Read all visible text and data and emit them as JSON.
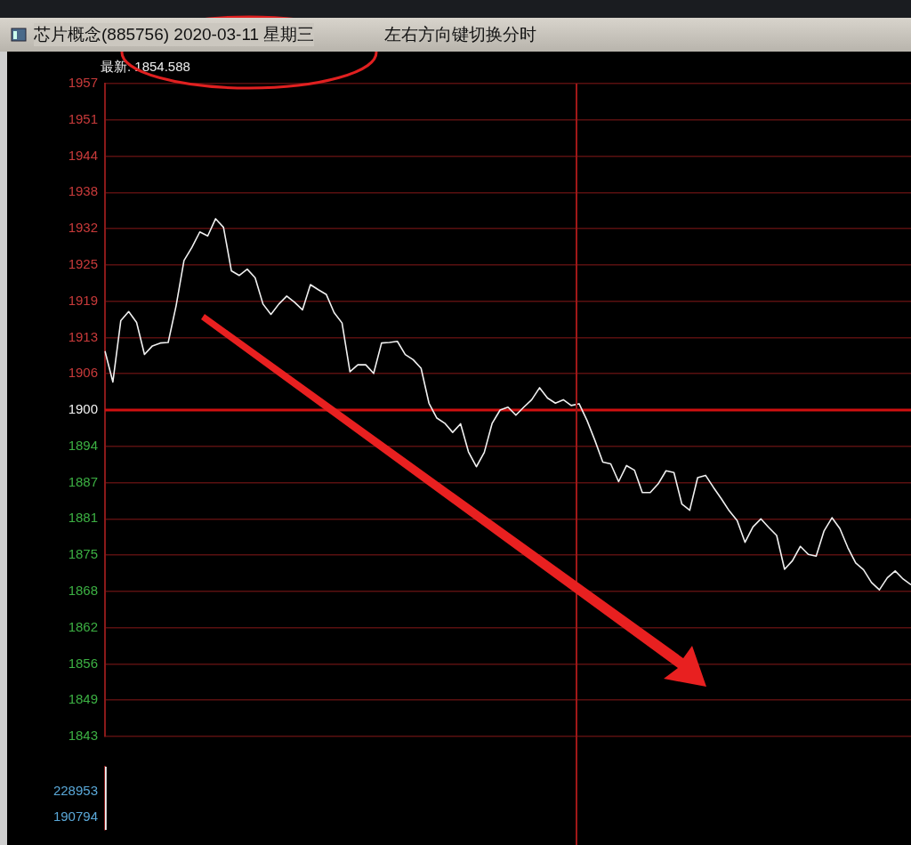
{
  "chart_data": [
    {
      "type": "line",
      "title": "芯片概念(885756) 2020-03-11 星期三",
      "subtitle": "左右方向键切换分时",
      "annotations": [
        "最新: 1854.588"
      ],
      "categories": [
        null,
        null,
        null,
        null,
        null,
        null,
        null,
        null,
        null,
        null,
        null,
        null,
        null,
        null,
        null,
        null,
        null,
        null,
        null,
        null,
        null,
        null,
        null,
        null,
        null,
        null,
        null,
        null,
        null,
        null,
        null,
        null,
        null,
        null,
        null,
        null,
        null,
        null,
        null,
        null,
        null,
        null,
        null,
        null,
        null,
        null,
        null,
        null,
        null,
        null,
        null,
        null,
        null,
        null,
        null,
        null,
        null,
        null,
        null,
        null,
        null,
        null,
        null,
        null,
        null,
        null,
        null,
        null,
        null,
        null,
        null,
        null,
        null,
        null,
        null,
        null,
        null,
        null,
        null,
        null,
        null,
        null,
        null,
        null,
        null,
        null,
        null,
        null,
        null,
        null,
        null,
        null,
        null,
        null,
        null,
        null,
        null,
        null,
        null,
        null,
        null,
        null,
        null
      ],
      "series": [
        {
          "color": "#f0f0f0",
          "values": [
            1910.3,
            1904.9,
            1915.6,
            1917.2,
            1915.3,
            1909.7,
            1911.2,
            1911.7,
            1911.8,
            1918.2,
            1926.1,
            1928.4,
            1931.1,
            1930.4,
            1933.4,
            1931.9,
            1924.3,
            1923.5,
            1924.6,
            1923.1,
            1918.5,
            1916.7,
            1918.5,
            1919.9,
            1918.8,
            1917.5,
            1921.9,
            1921.0,
            1920.2,
            1917.0,
            1915.2,
            1906.7,
            1907.9,
            1907.9,
            1906.4,
            1911.7,
            1911.8,
            1912.0,
            1909.7,
            1908.8,
            1907.3,
            1901.2,
            1898.6,
            1897.7,
            1896.1,
            1897.6,
            1892.7,
            1890.1,
            1892.6,
            1897.7,
            1900.0,
            1900.5,
            1899.1,
            1900.5,
            1901.8,
            1903.9,
            1902.1,
            1901.2,
            1901.8,
            1900.8,
            1901.1,
            1898.2,
            1894.7,
            1890.9,
            1890.6,
            1887.5,
            1890.3,
            1889.5,
            1885.6,
            1885.6,
            1887.1,
            1889.4,
            1889.1,
            1883.6,
            1882.5,
            1888.2,
            1888.6,
            1886.5,
            1884.5,
            1882.4,
            1880.7,
            1876.9,
            1879.6,
            1881.0,
            1879.5,
            1878.1,
            1872.2,
            1873.7,
            1876.2,
            1874.8,
            1874.5,
            1878.9,
            1881.2,
            1879.3,
            1876.0,
            1873.3,
            1872.1,
            1869.9,
            1868.6,
            1870.7,
            1871.9,
            1870.5,
            1869.5
          ]
        }
      ],
      "ylim": [
        1843,
        1957
      ],
      "yticks": [
        {
          "value": 1843,
          "label": "1843"
        },
        {
          "value": 1849.333,
          "label": "1849"
        },
        {
          "value": 1855.667,
          "label": "1856"
        },
        {
          "value": 1862,
          "label": "1862"
        },
        {
          "value": 1868.333,
          "label": "1868"
        },
        {
          "value": 1874.667,
          "label": "1875"
        },
        {
          "value": 1881,
          "label": "1881"
        },
        {
          "value": 1887.333,
          "label": "1887"
        },
        {
          "value": 1893.667,
          "label": "1894"
        },
        {
          "value": 1900,
          "label": "1900"
        },
        {
          "value": 1906.333,
          "label": "1906"
        },
        {
          "value": 1912.667,
          "label": "1913"
        },
        {
          "value": 1919,
          "label": "1919"
        },
        {
          "value": 1925.333,
          "label": "1925"
        },
        {
          "value": 1931.667,
          "label": "1932"
        },
        {
          "value": 1938,
          "label": "1938"
        },
        {
          "value": 1944.333,
          "label": "1944"
        },
        {
          "value": 1950.667,
          "label": "1951"
        },
        {
          "value": 1957,
          "label": "1957"
        }
      ],
      "ref_lines": [
        {
          "axis": "y",
          "value": 1900,
          "color": "#d01010"
        }
      ],
      "grid": "y",
      "legend": false,
      "marker": "none",
      "line_style": "solid",
      "tick_labels": "y"
    },
    {
      "type": "bar",
      "categories": [
        null,
        null,
        null,
        null,
        null,
        null,
        null,
        null,
        null,
        null,
        null,
        null,
        null,
        null,
        null,
        null,
        null,
        null,
        null,
        null,
        null,
        null,
        null,
        null,
        null,
        null,
        null,
        null,
        null,
        null,
        null,
        null,
        null,
        null,
        null,
        null,
        null,
        null,
        null,
        null,
        null,
        null,
        null,
        null,
        null,
        null,
        null,
        null,
        null,
        null,
        null,
        null,
        null,
        null,
        null,
        null,
        null,
        null,
        null,
        null,
        null,
        null,
        null,
        null,
        null,
        null,
        null,
        null,
        null,
        null,
        null,
        null,
        null,
        null,
        null,
        null,
        null,
        null,
        null,
        null,
        null,
        null,
        null,
        null,
        null,
        null,
        null,
        null,
        null,
        null,
        null,
        null,
        null,
        null,
        null,
        null,
        null,
        null,
        null,
        null,
        null,
        null,
        null
      ],
      "series": [
        {
          "color": "#f0f0f0",
          "values": [
            267000,
            null,
            null,
            null,
            null,
            null,
            null,
            null,
            null,
            null,
            null,
            null,
            null,
            null,
            null,
            null,
            null,
            null,
            null,
            null,
            null,
            null,
            null,
            null,
            null,
            null,
            null,
            null,
            null,
            null,
            null,
            null,
            null,
            null,
            null,
            null,
            null,
            null,
            null,
            null,
            null,
            null,
            null,
            null,
            null,
            null,
            null,
            null,
            null,
            null,
            null,
            null,
            null,
            null,
            null,
            null,
            null,
            null,
            null,
            null,
            null,
            null,
            null,
            null,
            null,
            null,
            null,
            null,
            null,
            null,
            null,
            null,
            null,
            null,
            null,
            null,
            null,
            null,
            null,
            null,
            null,
            null,
            null,
            null,
            null,
            null,
            null,
            null,
            null,
            null,
            null,
            null,
            null,
            null,
            null,
            null,
            null,
            null,
            null,
            null,
            null,
            null,
            null
          ]
        }
      ],
      "ylim": [
        171000,
        267000
      ],
      "yticks": [
        190794,
        228953
      ],
      "grid": false,
      "legend": false,
      "tick_labels": "y"
    }
  ]
}
